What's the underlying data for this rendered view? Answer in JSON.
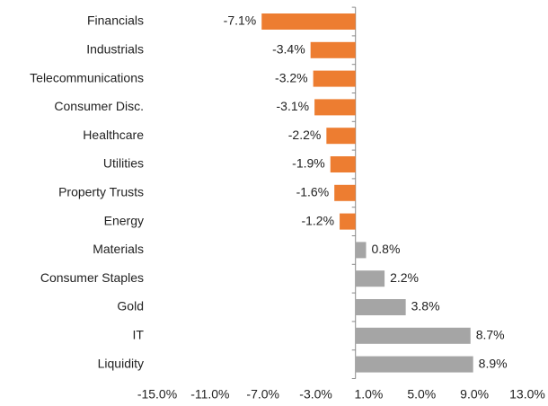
{
  "chart_data": {
    "type": "hbar",
    "categories": [
      "Financials",
      "Industrials",
      "Telecommunications",
      "Consumer Disc.",
      "Healthcare",
      "Utilities",
      "Property Trusts",
      "Energy",
      "Materials",
      "Consumer Staples",
      "Gold",
      "IT",
      "Liquidity"
    ],
    "values": [
      -7.1,
      -3.4,
      -3.2,
      -3.1,
      -2.2,
      -1.9,
      -1.6,
      -1.2,
      0.8,
      2.2,
      3.8,
      8.7,
      8.9
    ],
    "value_labels": [
      "-7.1%",
      "-3.4%",
      "-3.2%",
      "-3.1%",
      "-2.2%",
      "-1.9%",
      "-1.6%",
      "-1.2%",
      "0.8%",
      "2.2%",
      "3.8%",
      "8.7%",
      "8.9%"
    ],
    "colors": [
      "#ed7d31",
      "#ed7d31",
      "#ed7d31",
      "#ed7d31",
      "#ed7d31",
      "#ed7d31",
      "#ed7d31",
      "#ed7d31",
      "#a5a5a5",
      "#a5a5a5",
      "#a5a5a5",
      "#a5a5a5",
      "#a5a5a5"
    ],
    "xlim": [
      -15,
      13
    ],
    "xticks": [
      {
        "value": -15,
        "label": "-15.0%"
      },
      {
        "value": -11,
        "label": "-11.0%"
      },
      {
        "value": -7,
        "label": "-7.0%"
      },
      {
        "value": -3,
        "label": "-3.0%"
      },
      {
        "value": 1,
        "label": "1.0%"
      },
      {
        "value": 5,
        "label": "5.0%"
      },
      {
        "value": 9,
        "label": "9.0%"
      },
      {
        "value": 13,
        "label": "13.0%"
      }
    ]
  }
}
